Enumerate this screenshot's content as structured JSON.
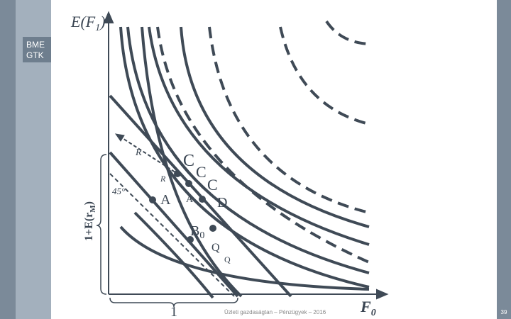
{
  "sidebar": {
    "logo": [
      "BME",
      "GTK"
    ]
  },
  "axes": {
    "y_label": {
      "base": "E(F",
      "sub": "1",
      "close": ")"
    },
    "x_label": {
      "base": "F",
      "sub": "0"
    },
    "brace_y": {
      "base": "1+E(r",
      "sub": "M",
      "close": ")"
    },
    "brace_x": "1",
    "angle": "45°"
  },
  "points": {
    "C1": "C",
    "C2": "C",
    "C3": "C",
    "D": "D",
    "A1": "A",
    "A2": "A",
    "B": {
      "base": "B",
      "sub": "0"
    },
    "Q1": "Q",
    "Q2": "Q",
    "R1": "R",
    "R2": "R"
  },
  "footer": {
    "text": "Üzleti gazdaságtan – Pénzügyek – 2016",
    "page": "39"
  }
}
